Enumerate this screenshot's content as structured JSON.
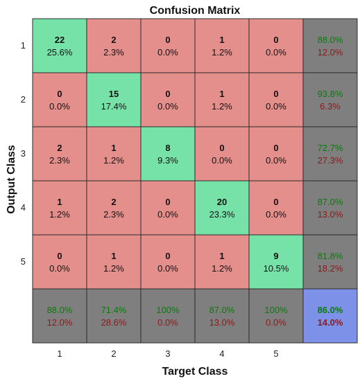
{
  "chart_data": {
    "type": "heatmap",
    "title": "Confusion Matrix",
    "xlabel": "Target Class",
    "ylabel": "Output Class",
    "x_ticks": [
      "1",
      "2",
      "3",
      "4",
      "5"
    ],
    "y_ticks": [
      "1",
      "2",
      "3",
      "4",
      "5"
    ],
    "matrix": [
      {
        "counts": [
          "22",
          "2",
          "0",
          "1",
          "0"
        ],
        "percents": [
          "25.6%",
          "2.3%",
          "0.0%",
          "1.2%",
          "0.0%"
        ],
        "row_summary": {
          "correct": "88.0%",
          "error": "12.0%"
        }
      },
      {
        "counts": [
          "0",
          "15",
          "0",
          "1",
          "0"
        ],
        "percents": [
          "0.0%",
          "17.4%",
          "0.0%",
          "1.2%",
          "0.0%"
        ],
        "row_summary": {
          "correct": "93.8%",
          "error": "6.3%"
        }
      },
      {
        "counts": [
          "2",
          "1",
          "8",
          "0",
          "0"
        ],
        "percents": [
          "2.3%",
          "1.2%",
          "9.3%",
          "0.0%",
          "0.0%"
        ],
        "row_summary": {
          "correct": "72.7%",
          "error": "27.3%"
        }
      },
      {
        "counts": [
          "1",
          "2",
          "0",
          "20",
          "0"
        ],
        "percents": [
          "1.2%",
          "2.3%",
          "0.0%",
          "23.3%",
          "0.0%"
        ],
        "row_summary": {
          "correct": "87.0%",
          "error": "13.0%"
        }
      },
      {
        "counts": [
          "0",
          "1",
          "0",
          "1",
          "9"
        ],
        "percents": [
          "0.0%",
          "1.2%",
          "0.0%",
          "1.2%",
          "10.5%"
        ],
        "row_summary": {
          "correct": "81.8%",
          "error": "18.2%"
        }
      }
    ],
    "column_summary": [
      {
        "correct": "88.0%",
        "error": "12.0%"
      },
      {
        "correct": "71.4%",
        "error": "28.6%"
      },
      {
        "correct": "100%",
        "error": "0.0%"
      },
      {
        "correct": "87.0%",
        "error": "13.0%"
      },
      {
        "correct": "100%",
        "error": "0.0%"
      }
    ],
    "overall": {
      "correct": "86.0%",
      "error": "14.0%"
    },
    "colors": {
      "diagonal": "#77e2a8",
      "off_diagonal": "#e58f8c",
      "summary": "#7f7f7f",
      "overall": "#7e91e8",
      "correct_text": "#0b7a0b",
      "error_text": "#8b1a1a"
    }
  }
}
